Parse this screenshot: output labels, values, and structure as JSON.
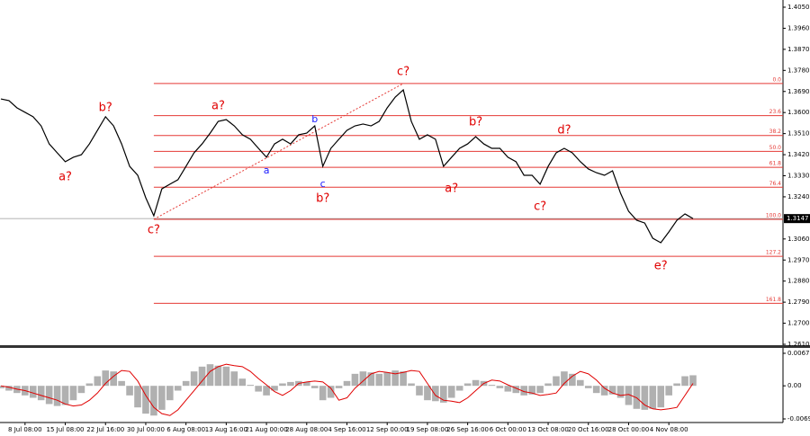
{
  "chart_data": {
    "type": "line",
    "color": "#000000",
    "categories": [
      null,
      null,
      null,
      "8 Jul 08:00",
      null,
      null,
      null,
      null,
      "15 Jul 08:00",
      null,
      null,
      null,
      null,
      "22 Jul 16:00",
      null,
      null,
      null,
      null,
      "30 Jul 00:00",
      null,
      null,
      null,
      null,
      "6 Aug 08:00",
      null,
      null,
      null,
      null,
      "13 Aug 16:00",
      null,
      null,
      null,
      null,
      "21 Aug 00:00",
      null,
      null,
      null,
      null,
      "28 Aug 08:00",
      null,
      null,
      null,
      null,
      "4 Sep 16:00",
      null,
      null,
      null,
      null,
      "12 Sep 00:00",
      null,
      null,
      null,
      null,
      "19 Sep 08:00",
      null,
      null,
      null,
      null,
      "26 Sep 16:00",
      null,
      null,
      null,
      null,
      "6 Oct 00:00",
      null,
      null,
      null,
      null,
      "13 Oct 08:00",
      null,
      null,
      null,
      null,
      "20 Oct 16:00",
      null,
      null,
      null,
      null,
      "28 Oct 00:00",
      null,
      null,
      null,
      null,
      "4 Nov 08:00",
      null,
      null,
      null
    ],
    "values": [
      1.3658,
      1.3651,
      1.362,
      1.3601,
      1.3582,
      1.3543,
      1.3466,
      1.3428,
      1.339,
      1.3409,
      1.342,
      1.3466,
      1.3524,
      1.3582,
      1.3543,
      1.3466,
      1.337,
      1.3332,
      1.3236,
      1.3159,
      1.3274,
      1.3294,
      1.3313,
      1.337,
      1.3428,
      1.3466,
      1.3512,
      1.3562,
      1.357,
      1.3543,
      1.3505,
      1.3486,
      1.3447,
      1.3409,
      1.3466,
      1.3486,
      1.3466,
      1.3505,
      1.3512,
      1.3543,
      1.337,
      1.3447,
      1.3486,
      1.3524,
      1.3543,
      1.3551,
      1.3543,
      1.3562,
      1.362,
      1.3666,
      1.3697,
      1.3562,
      1.3486,
      1.3505,
      1.3486,
      1.337,
      1.3409,
      1.3447,
      1.3466,
      1.3497,
      1.3466,
      1.3447,
      1.3447,
      1.3409,
      1.339,
      1.3332,
      1.3332,
      1.3294,
      1.337,
      1.3428,
      1.3447,
      1.3428,
      1.339,
      1.3359,
      1.3343,
      1.3332,
      1.3351,
      1.3255,
      1.3178,
      1.314,
      1.3128,
      1.3063,
      1.3044,
      1.309,
      1.314,
      1.3167,
      1.3147
    ],
    "ylim": [
      1.261,
      1.405
    ],
    "yticks": [
      {
        "value": 1.405,
        "label": "1.4050"
      },
      {
        "value": 1.396,
        "label": "1.3960"
      },
      {
        "value": 1.387,
        "label": "1.3870"
      },
      {
        "value": 1.378,
        "label": "1.3780"
      },
      {
        "value": 1.369,
        "label": "1.3690"
      },
      {
        "value": 1.36,
        "label": "1.3600"
      },
      {
        "value": 1.351,
        "label": "1.3510"
      },
      {
        "value": 1.342,
        "label": "1.3420"
      },
      {
        "value": 1.333,
        "label": "1.3330"
      },
      {
        "value": 1.324,
        "label": "1.3240"
      },
      {
        "value": 1.306,
        "label": "1.3060"
      },
      {
        "value": 1.297,
        "label": "1.2970"
      },
      {
        "value": 1.288,
        "label": "1.2880"
      },
      {
        "value": 1.279,
        "label": "1.2790"
      },
      {
        "value": 1.27,
        "label": "1.2700"
      },
      {
        "value": 1.261,
        "label": "1.2610"
      }
    ],
    "current_price": 1.3147,
    "fib_levels": [
      {
        "label": "0.0",
        "value": 1.3724
      },
      {
        "label": "23.6",
        "value": 1.3587
      },
      {
        "label": "38.2",
        "value": 1.3502
      },
      {
        "label": "50.0",
        "value": 1.3434
      },
      {
        "label": "61.8",
        "value": 1.3366
      },
      {
        "label": "76.4",
        "value": 1.3281
      },
      {
        "label": "100.0",
        "value": 1.3144
      },
      {
        "label": "127.2",
        "value": 1.2986
      },
      {
        "label": "161.8",
        "value": 1.2785
      }
    ],
    "fib_color": "#e53935",
    "trendline": {
      "x": [
        19,
        50
      ],
      "y": [
        1.3144,
        1.3724
      ]
    },
    "annotations": [
      {
        "text": "a?",
        "x": 8,
        "y": 1.3324,
        "color": "#e00000"
      },
      {
        "text": "b?",
        "x": 13,
        "y": 1.362,
        "color": "#e00000"
      },
      {
        "text": "c?",
        "x": 19,
        "y": 1.3098,
        "color": "#e00000"
      },
      {
        "text": "a?",
        "x": 27,
        "y": 1.3628,
        "color": "#e00000"
      },
      {
        "text": "a",
        "x": 33,
        "y": 1.3351,
        "color": "#1a1aff"
      },
      {
        "text": "b",
        "x": 39,
        "y": 1.357,
        "color": "#1a1aff"
      },
      {
        "text": "c",
        "x": 40,
        "y": 1.3294,
        "color": "#1a1aff"
      },
      {
        "text": "b?",
        "x": 40,
        "y": 1.3232,
        "color": "#e00000"
      },
      {
        "text": "c?",
        "x": 50,
        "y": 1.3774,
        "color": "#e00000"
      },
      {
        "text": "a?",
        "x": 56,
        "y": 1.3274,
        "color": "#e00000"
      },
      {
        "text": "b?",
        "x": 59,
        "y": 1.3558,
        "color": "#e00000"
      },
      {
        "text": "c?",
        "x": 67,
        "y": 1.3197,
        "color": "#e00000"
      },
      {
        "text": "d?",
        "x": 70,
        "y": 1.3524,
        "color": "#e00000"
      },
      {
        "text": "e?",
        "x": 82,
        "y": 1.2944,
        "color": "#e00000"
      }
    ],
    "macd": {
      "ylim": [
        -0.0069,
        0.00678
      ],
      "yticks": [
        0.00678,
        {
          "value": 0,
          "label": "0.00"
        },
        -0.0069
      ],
      "histogram_color": "#b0b0b0",
      "signal_color": "#e00000",
      "histogram": [
        -0.0005,
        -0.001,
        -0.0015,
        -0.002,
        -0.0025,
        -0.003,
        -0.0038,
        -0.0042,
        -0.004,
        -0.003,
        -0.0015,
        0.0005,
        0.002,
        0.0032,
        0.003,
        0.001,
        -0.002,
        -0.0045,
        -0.0058,
        -0.0062,
        -0.005,
        -0.003,
        -0.001,
        0.001,
        0.003,
        0.004,
        0.0045,
        0.0042,
        0.004,
        0.003,
        0.0015,
        0.0002,
        -0.0012,
        -0.002,
        -0.001,
        0.0005,
        0.0008,
        0.001,
        0.0008,
        -0.0005,
        -0.003,
        -0.0025,
        -0.0005,
        0.001,
        0.0025,
        0.003,
        0.0028,
        0.0025,
        0.0028,
        0.0032,
        0.003,
        0.0005,
        -0.002,
        -0.003,
        -0.0032,
        -0.0035,
        -0.0025,
        -0.001,
        0.0005,
        0.0012,
        0.001,
        0.0002,
        -0.0005,
        -0.0012,
        -0.0015,
        -0.002,
        -0.0018,
        -0.0015,
        0.0005,
        0.002,
        0.003,
        0.0025,
        0.0012,
        -0.0005,
        -0.0015,
        -0.002,
        -0.0018,
        -0.0025,
        -0.004,
        -0.0048,
        -0.005,
        -0.0048,
        -0.0045,
        -0.002,
        0.0005,
        0.002,
        0.0022
      ],
      "signal": [
        0.0,
        -0.0003,
        -0.0007,
        -0.001,
        -0.0015,
        -0.002,
        -0.0025,
        -0.003,
        -0.0038,
        -0.0042,
        -0.004,
        -0.003,
        -0.0015,
        0.0005,
        0.002,
        0.0032,
        0.003,
        0.001,
        -0.002,
        -0.0045,
        -0.0058,
        -0.0062,
        -0.005,
        -0.003,
        -0.001,
        0.001,
        0.003,
        0.004,
        0.0045,
        0.0042,
        0.004,
        0.003,
        0.0015,
        0.0002,
        -0.0012,
        -0.002,
        -0.001,
        0.0005,
        0.0008,
        0.001,
        0.0008,
        -0.0005,
        -0.003,
        -0.0025,
        -0.0005,
        0.001,
        0.0025,
        0.003,
        0.0028,
        0.0025,
        0.0028,
        0.0032,
        0.003,
        0.0005,
        -0.002,
        -0.003,
        -0.0032,
        -0.0035,
        -0.0025,
        -0.001,
        0.0005,
        0.0012,
        0.001,
        0.0002,
        -0.0005,
        -0.0012,
        -0.0015,
        -0.002,
        -0.0018,
        -0.0015,
        0.0005,
        0.002,
        0.003,
        0.0025,
        0.0012,
        -0.0005,
        -0.0015,
        -0.002,
        -0.0018,
        -0.0025,
        -0.004,
        -0.0048,
        -0.005,
        -0.0048,
        -0.0045,
        -0.002,
        0.0005
      ]
    }
  }
}
